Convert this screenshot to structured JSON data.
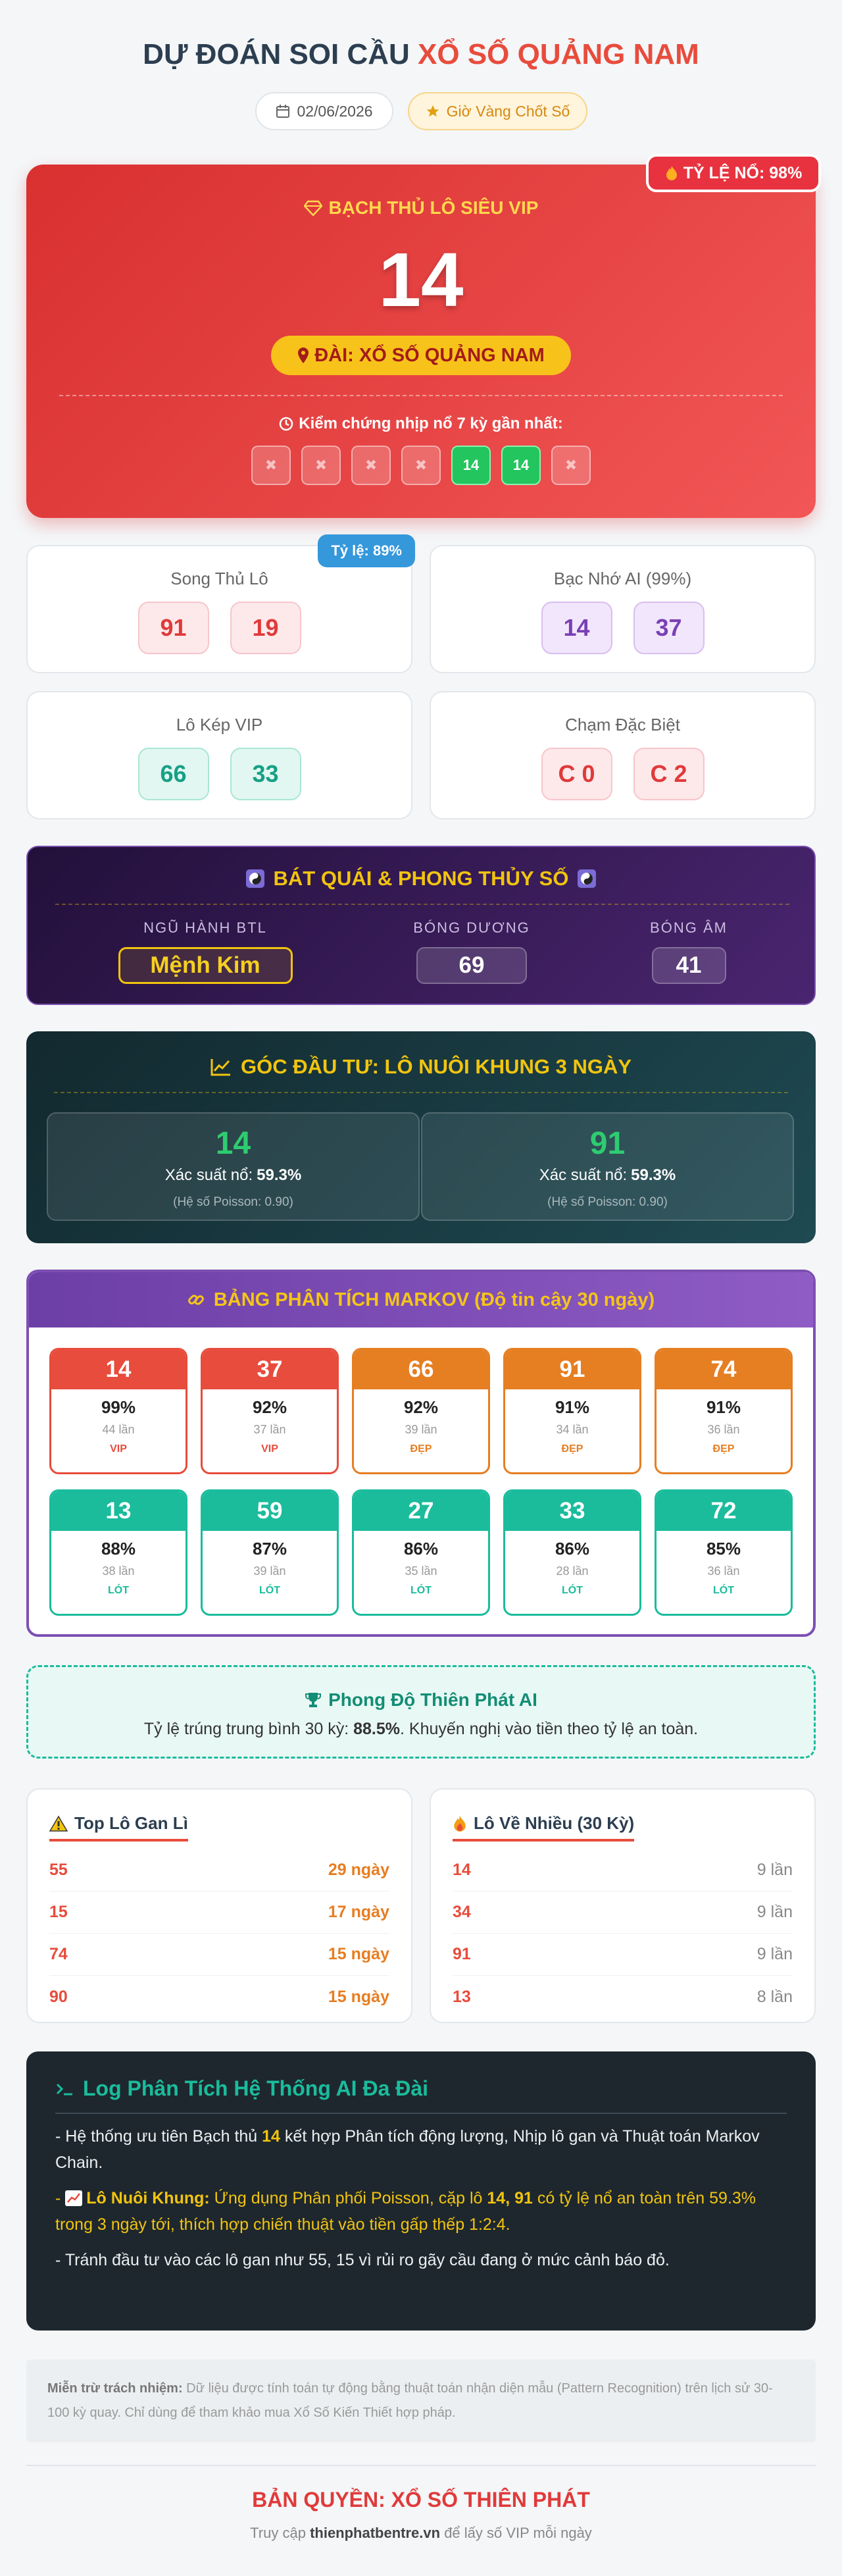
{
  "header": {
    "title_main": "DỰ ĐOÁN SOI CẦU",
    "title_highlight": "XỔ SỐ QUẢNG NAM",
    "date": "02/06/2026",
    "golden_hour": "Giờ Vàng Chốt Số"
  },
  "vip_card": {
    "badge": "TỶ LỆ NỔ: 98%",
    "label": "BẠCH THỦ LÔ SIÊU VIP",
    "number": "14",
    "station": "ĐÀI: XỔ SỐ QUẢNG NAM",
    "history_label": "Kiểm chứng nhịp nổ 7 kỳ gần nhất:",
    "history": [
      {
        "text": "✖",
        "hit": false
      },
      {
        "text": "✖",
        "hit": false
      },
      {
        "text": "✖",
        "hit": false
      },
      {
        "text": "✖",
        "hit": false
      },
      {
        "text": "14",
        "hit": true
      },
      {
        "text": "14",
        "hit": true
      },
      {
        "text": "✖",
        "hit": false
      }
    ]
  },
  "cards": [
    {
      "title": "Song Thủ Lô",
      "badge": "Tỷ lệ: 89%",
      "numbers": [
        "91",
        "19"
      ],
      "color": "red"
    },
    {
      "title": "Bạc Nhớ AI (99%)",
      "numbers": [
        "14",
        "37"
      ],
      "color": "purple"
    },
    {
      "title": "Lô Kép VIP",
      "numbers": [
        "66",
        "33"
      ],
      "color": "teal"
    },
    {
      "title": "Chạm Đặc Biệt",
      "numbers": [
        "C 0",
        "C 2"
      ],
      "color": "red"
    }
  ],
  "bat_quai": {
    "title": "BÁT QUÁI & PHONG THỦY SỐ",
    "items": [
      {
        "label": "NGŨ HÀNH BTL",
        "value": "Mệnh Kim"
      },
      {
        "label": "BÓNG DƯƠNG",
        "value": "69"
      },
      {
        "label": "BÓNG ÂM",
        "value": "41"
      }
    ]
  },
  "investment": {
    "title": "GÓC ĐẦU TƯ: LÔ NUÔI KHUNG 3 NGÀY",
    "picks": [
      {
        "number": "14",
        "prob_label": "Xác suất nổ:",
        "prob": "59.3%",
        "poisson": "(Hệ số Poisson: 0.90)"
      },
      {
        "number": "91",
        "prob_label": "Xác suất nổ:",
        "prob": "59.3%",
        "poisson": "(Hệ số Poisson: 0.90)"
      }
    ]
  },
  "markov": {
    "title": "BẢNG PHÂN TÍCH MARKOV (Độ tin cậy 30 ngày)",
    "items": [
      {
        "number": "14",
        "percent": "99%",
        "count": "44 lần",
        "tag": "VIP",
        "color": "#e74c3c"
      },
      {
        "number": "37",
        "percent": "92%",
        "count": "37 lần",
        "tag": "VIP",
        "color": "#e74c3c"
      },
      {
        "number": "66",
        "percent": "92%",
        "count": "39 lần",
        "tag": "ĐẸP",
        "color": "#e67e22"
      },
      {
        "number": "91",
        "percent": "91%",
        "count": "34 lần",
        "tag": "ĐẸP",
        "color": "#e67e22"
      },
      {
        "number": "74",
        "percent": "91%",
        "count": "36 lần",
        "tag": "ĐẸP",
        "color": "#e67e22"
      },
      {
        "number": "13",
        "percent": "88%",
        "count": "38 lần",
        "tag": "LÓT",
        "color": "#1abc9c"
      },
      {
        "number": "59",
        "percent": "87%",
        "count": "39 lần",
        "tag": "LÓT",
        "color": "#1abc9c"
      },
      {
        "number": "27",
        "percent": "86%",
        "count": "35 lần",
        "tag": "LÓT",
        "color": "#1abc9c"
      },
      {
        "number": "33",
        "percent": "86%",
        "count": "28 lần",
        "tag": "LÓT",
        "color": "#1abc9c"
      },
      {
        "number": "72",
        "percent": "85%",
        "count": "36 lần",
        "tag": "LÓT",
        "color": "#1abc9c"
      }
    ]
  },
  "performance": {
    "title": "Phong Độ Thiên Phát AI",
    "text": [
      "Tỷ lệ trúng trung bình 30 kỳ: ",
      "88.5%",
      ". Khuyến nghị vào tiền theo tỷ lệ an toàn."
    ]
  },
  "lists": [
    {
      "title": "Top Lô Gan Lì",
      "value_color": "#e67e22",
      "rows": [
        {
          "number": "55",
          "value": "29 ngày"
        },
        {
          "number": "15",
          "value": "17 ngày"
        },
        {
          "number": "74",
          "value": "15 ngày"
        },
        {
          "number": "90",
          "value": "15 ngày"
        }
      ]
    },
    {
      "title": "Lô Về Nhiều (30 Kỳ)",
      "value_color": "#888888",
      "rows": [
        {
          "number": "14",
          "value": "9 lần"
        },
        {
          "number": "34",
          "value": "9 lần"
        },
        {
          "number": "91",
          "value": "9 lần"
        },
        {
          "number": "13",
          "value": "8 lần"
        }
      ]
    }
  ],
  "log": {
    "title": "Log Phân Tích Hệ Thống AI Đa Đài",
    "p1": [
      "- Hệ thống ưu tiên Bạch thủ ",
      "14",
      " kết hợp Phân tích động lượng, Nhịp lô gan và Thuật toán Markov Chain."
    ],
    "p2": [
      "- ",
      "Lô Nuôi Khung:",
      " Ứng dụng Phân phối Poisson, cặp lô ",
      "14, 91",
      " có tỷ lệ nổ an toàn trên 59.3% trong 3 ngày tới, thích hợp chiến thuật vào tiền gấp thếp 1:2:4."
    ],
    "p3": [
      "- Tránh đầu tư vào các lô gan như 55, 15 vì rủi ro gãy cầu đang ở mức cảnh báo đỏ."
    ]
  },
  "disclaimer": {
    "label": "Miễn trừ trách nhiệm:",
    "text": " Dữ liệu được tính toán tự động bằng thuật toán nhận diện mẫu (Pattern Recognition) trên lịch sử 30-100 kỳ quay. Chỉ dùng để tham khảo mua Xổ Số Kiến Thiết hợp pháp."
  },
  "footer": {
    "copyright": "BẢN QUYỀN: XỔ SỐ THIÊN PHÁT",
    "visit": [
      "Truy cập ",
      "thienphatbentre.vn",
      " để lấy số VIP mỗi ngày"
    ]
  }
}
